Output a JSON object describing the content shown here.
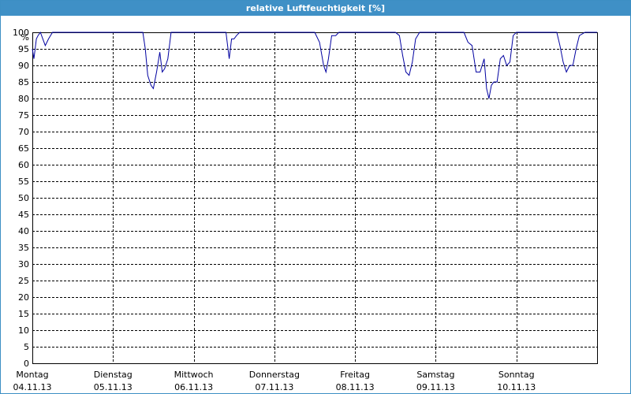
{
  "window": {
    "title": "relative Luftfeuchtigkeit [%]"
  },
  "colors": {
    "title_bar": "#3f90c6",
    "series": "#0000a0",
    "grid": "#000000"
  },
  "chart_data": {
    "type": "line",
    "title": "relative Luftfeuchtigkeit [%]",
    "ylabel": "%",
    "ylim": [
      0,
      100
    ],
    "y_ticks": [
      0,
      5,
      10,
      15,
      20,
      25,
      30,
      35,
      40,
      45,
      50,
      55,
      60,
      65,
      70,
      75,
      80,
      85,
      90,
      95,
      100
    ],
    "grid": true,
    "xlim": [
      0,
      7
    ],
    "x_ticks": [
      {
        "day": "Montag",
        "date": "04.11.13"
      },
      {
        "day": "Dienstag",
        "date": "05.11.13"
      },
      {
        "day": "Mittwoch",
        "date": "06.11.13"
      },
      {
        "day": "Donnerstag",
        "date": "07.11.13"
      },
      {
        "day": "Freitag",
        "date": "08.11.13"
      },
      {
        "day": "Samstag",
        "date": "09.11.13"
      },
      {
        "day": "Sonntag",
        "date": "10.11.13"
      }
    ],
    "series": [
      {
        "x": [
          0.0,
          0.02,
          0.05,
          0.07,
          0.1,
          0.13,
          0.16,
          0.2,
          0.25,
          0.3,
          0.5,
          1.0,
          1.37,
          1.4,
          1.43,
          1.47,
          1.5,
          1.54,
          1.58,
          1.61,
          1.64,
          1.68,
          1.72,
          1.76,
          1.8,
          1.84,
          1.88,
          1.93,
          1.97,
          2.0,
          2.2,
          2.4,
          2.44,
          2.47,
          2.5,
          2.53,
          2.57,
          2.63,
          2.7,
          2.75,
          3.0,
          3.4,
          3.5,
          3.56,
          3.61,
          3.64,
          3.67,
          3.71,
          3.76,
          3.8,
          3.9,
          4.0,
          4.5,
          4.55,
          4.59,
          4.63,
          4.67,
          4.71,
          4.75,
          4.8,
          4.85,
          5.0,
          5.35,
          5.4,
          5.45,
          5.5,
          5.55,
          5.6,
          5.63,
          5.66,
          5.69,
          5.72,
          5.76,
          5.8,
          5.84,
          5.88,
          5.92,
          5.96,
          6.0,
          6.1,
          6.5,
          6.54,
          6.58,
          6.62,
          6.66,
          6.7,
          6.74,
          6.78,
          6.85,
          7.0
        ],
        "values": [
          95,
          92,
          98,
          99,
          100,
          98,
          96,
          98,
          100,
          100,
          100,
          100,
          100,
          95,
          87,
          84,
          83,
          88,
          94,
          88,
          89,
          92,
          100,
          100,
          100,
          100,
          100,
          100,
          100,
          100,
          100,
          100,
          92,
          98,
          98,
          99,
          100,
          100,
          100,
          100,
          100,
          100,
          100,
          97,
          90,
          88,
          92,
          99,
          99,
          100,
          100,
          100,
          100,
          99,
          93,
          88,
          87,
          91,
          98,
          100,
          100,
          100,
          100,
          97,
          96,
          88,
          88,
          92,
          83,
          80,
          84,
          85,
          85,
          92,
          93,
          90,
          91,
          99,
          100,
          100,
          100,
          96,
          91,
          88,
          90,
          90,
          95,
          99,
          100,
          100
        ]
      }
    ]
  }
}
